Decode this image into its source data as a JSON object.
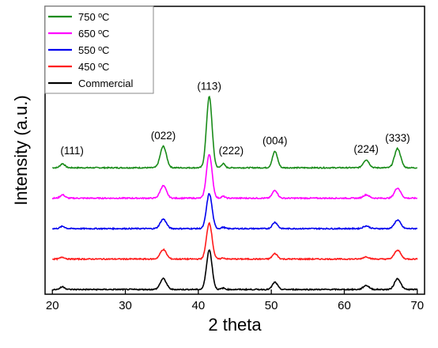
{
  "chart_data": {
    "type": "line",
    "title": "",
    "xlabel": "2 theta",
    "ylabel": "Intensity (a.u.)",
    "xlim": [
      19,
      71
    ],
    "xticks": [
      20,
      30,
      40,
      50,
      60,
      70
    ],
    "y_tick_labels": false,
    "grid": false,
    "legend": {
      "placement": "top-left"
    },
    "peaks": [
      {
        "label": "(111)",
        "x": 21.4
      },
      {
        "label": "(022)",
        "x": 35.2
      },
      {
        "label": "(113)",
        "x": 41.5
      },
      {
        "label": "(222)",
        "x": 43.4
      },
      {
        "label": "(004)",
        "x": 50.5
      },
      {
        "label": "(224)",
        "x": 63.0
      },
      {
        "label": "(333)",
        "x": 67.3
      }
    ],
    "series": [
      {
        "name": "750 ºC",
        "color": "#1a8c1a",
        "baseline": 5.4,
        "peak_heights": [
          0.18,
          0.95,
          3.15,
          0.18,
          0.72,
          0.35,
          0.85
        ]
      },
      {
        "name": "650 ºC",
        "color": "#ff00ff",
        "baseline": 4.05,
        "peak_heights": [
          0.15,
          0.55,
          1.95,
          0.08,
          0.35,
          0.15,
          0.45
        ]
      },
      {
        "name": "550 ºC",
        "color": "#0000ee",
        "baseline": 2.7,
        "peak_heights": [
          0.1,
          0.42,
          1.55,
          0.06,
          0.28,
          0.12,
          0.38
        ]
      },
      {
        "name": "450 ºC",
        "color": "#ff1a1a",
        "baseline": 1.35,
        "peak_heights": [
          0.08,
          0.42,
          1.6,
          0.05,
          0.24,
          0.1,
          0.4
        ]
      },
      {
        "name": "Commercial",
        "color": "#000000",
        "baseline": 0.0,
        "peak_heights": [
          0.12,
          0.48,
          1.75,
          0.06,
          0.32,
          0.18,
          0.48
        ]
      }
    ]
  }
}
